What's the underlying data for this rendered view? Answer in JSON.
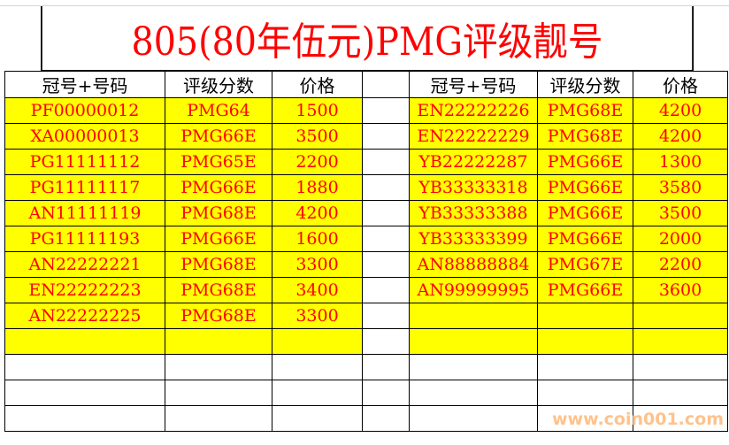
{
  "title": "805(80年伍元)PMG评级靓号",
  "headers": {
    "serial": "冠号+号码",
    "grade": "评级分数",
    "price": "价格"
  },
  "left": [
    [
      "PF00000012",
      "PMG64",
      "1500"
    ],
    [
      "XA00000013",
      "PMG66E",
      "3500"
    ],
    [
      "PG11111112",
      "PMG65E",
      "2200"
    ],
    [
      "PG11111117",
      "PMG66E",
      "1880"
    ],
    [
      "AN11111119",
      "PMG68E",
      "4200"
    ],
    [
      "PG11111193",
      "PMG66E",
      "1600"
    ],
    [
      "AN22222221",
      "PMG68E",
      "3300"
    ],
    [
      "EN22222223",
      "PMG68E",
      "3400"
    ],
    [
      "AN22222225",
      "PMG68E",
      "3300"
    ]
  ],
  "right": [
    [
      "EN22222226",
      "PMG68E",
      "4200"
    ],
    [
      "EN22222229",
      "PMG68E",
      "4200"
    ],
    [
      "YB22222287",
      "PMG66E",
      "1300"
    ],
    [
      "YB33333318",
      "PMG66E",
      "3580"
    ],
    [
      "YB33333388",
      "PMG66E",
      "3500"
    ],
    [
      "YB33333399",
      "PMG66E",
      "2000"
    ],
    [
      "AN88888884",
      "PMG67E",
      "2200"
    ],
    [
      "AN99999995",
      "PMG66E",
      "3600"
    ]
  ],
  "watermark": "www.coin001.com",
  "colors": {
    "text": "#ff0000",
    "highlight": "#ffff00"
  }
}
